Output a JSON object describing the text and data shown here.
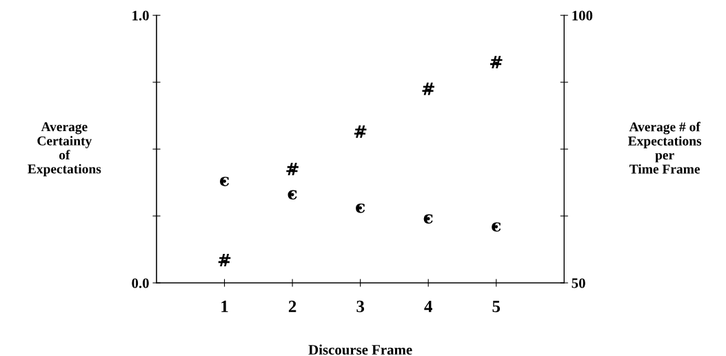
{
  "chart_data": {
    "type": "scatter",
    "xlabel": "Discourse Frame",
    "ylabel": "Average\nCertainty\nof\nExpectations",
    "y2label": "Average # of\nExpectations\nper\nTime Frame",
    "x": [
      1,
      2,
      3,
      4,
      5
    ],
    "xlim": [
      0,
      6
    ],
    "xticks": [
      1,
      2,
      3,
      4,
      5
    ],
    "ylim": [
      0,
      1
    ],
    "yticks": [
      {
        "value": 0,
        "label": "0.0"
      },
      {
        "value": 0.25,
        "label": null
      },
      {
        "value": 0.5,
        "label": null
      },
      {
        "value": 0.75,
        "label": null
      },
      {
        "value": 1,
        "label": "1.0"
      }
    ],
    "y2lim": [
      50,
      100
    ],
    "y2ticks": [
      50,
      {
        "value": 62.5,
        "label": null
      },
      {
        "value": 75,
        "label": null
      },
      {
        "value": 87.5,
        "label": null
      },
      100
    ],
    "grid": false,
    "legend": false,
    "series": [
      {
        "name": "c",
        "color": "#000000",
        "values": [
          0.38,
          0.33,
          0.28,
          0.24,
          0.21
        ]
      },
      {
        "name": "#",
        "color": "#000000",
        "axis": "y2",
        "values": [
          54,
          71,
          78,
          86,
          91
        ]
      }
    ]
  }
}
